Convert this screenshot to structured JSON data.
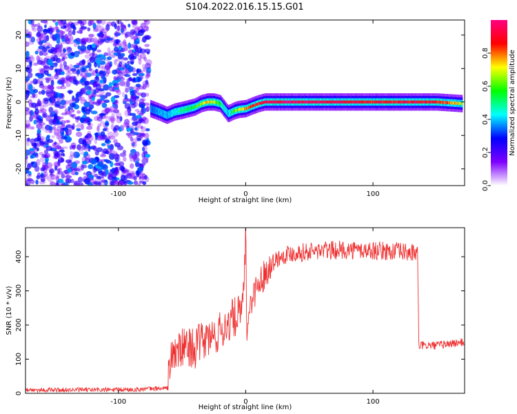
{
  "title": "S104.2022.016.15.15.G01",
  "chart_data": [
    {
      "type": "heatmap",
      "xlabel": "Height of straight line (km)",
      "ylabel": "Frequency (Hz)",
      "xlim": [
        -173,
        172
      ],
      "ylim": [
        -25,
        24.5
      ],
      "xticks": [
        -100,
        0,
        100
      ],
      "yticks": [
        -20,
        -10,
        0,
        10,
        20
      ],
      "noise_region_x": [
        -173,
        -76
      ],
      "colorbar": {
        "label": "Normalized spectral amplitude",
        "range": [
          0,
          1
        ],
        "ticks": [
          0.0,
          0.2,
          0.4,
          0.6,
          0.8
        ],
        "colormap": [
          "#ffffff",
          "#7f00ff",
          "#0000ff",
          "#00ffff",
          "#00ff00",
          "#ffff00",
          "#ff0000",
          "#ff0080"
        ]
      },
      "ridge": {
        "x": [
          -75,
          -68,
          -62,
          -56,
          -50,
          -45,
          -40,
          -35,
          -30,
          -25,
          -20,
          -17,
          -14,
          -12,
          -10,
          -8,
          -5,
          0,
          5,
          10,
          15,
          30,
          60,
          100,
          130,
          150,
          170
        ],
        "y": [
          -2,
          -3,
          -4,
          -3,
          -2.5,
          -2,
          -1.5,
          -0.5,
          0,
          0,
          -0.5,
          -2,
          -3.5,
          -3.2,
          -2.8,
          -2.5,
          -2.2,
          -2,
          -1.2,
          -0.5,
          0,
          0,
          0,
          0,
          0,
          0,
          -0.5
        ],
        "amplitude": [
          0.35,
          0.4,
          0.4,
          0.45,
          0.5,
          0.55,
          0.6,
          0.7,
          0.75,
          0.7,
          0.55,
          0.45,
          0.4,
          0.5,
          0.6,
          0.65,
          0.7,
          0.8,
          0.85,
          0.9,
          0.95,
          0.98,
          0.95,
          0.9,
          0.92,
          0.9,
          0.7
        ]
      }
    },
    {
      "type": "line",
      "xlabel": "Height of straight line (km)",
      "ylabel": "SNR (10 * v/v)",
      "xlim": [
        -173,
        172
      ],
      "ylim": [
        0,
        485
      ],
      "xticks": [
        -100,
        0,
        100
      ],
      "yticks": [
        0,
        100,
        200,
        300,
        400
      ],
      "color": "#ee3030",
      "series": [
        {
          "x": [
            -173,
            -150,
            -120,
            -100,
            -80,
            -61,
            -60,
            -55,
            -50,
            -45,
            -40,
            -35,
            -30,
            -25,
            -20,
            -15,
            -10,
            -5,
            -2,
            0,
            1,
            2,
            5,
            10,
            15,
            20,
            25,
            30,
            35,
            40,
            50,
            60,
            80,
            100,
            120,
            135,
            136,
            150,
            160,
            172
          ],
          "y": [
            10,
            10,
            10,
            10,
            12,
            15,
            90,
            120,
            130,
            140,
            130,
            150,
            160,
            165,
            180,
            200,
            220,
            230,
            250,
            480,
            150,
            230,
            280,
            320,
            350,
            380,
            395,
            405,
            410,
            412,
            415,
            418,
            420,
            418,
            415,
            410,
            140,
            140,
            145,
            150
          ]
        }
      ]
    }
  ]
}
